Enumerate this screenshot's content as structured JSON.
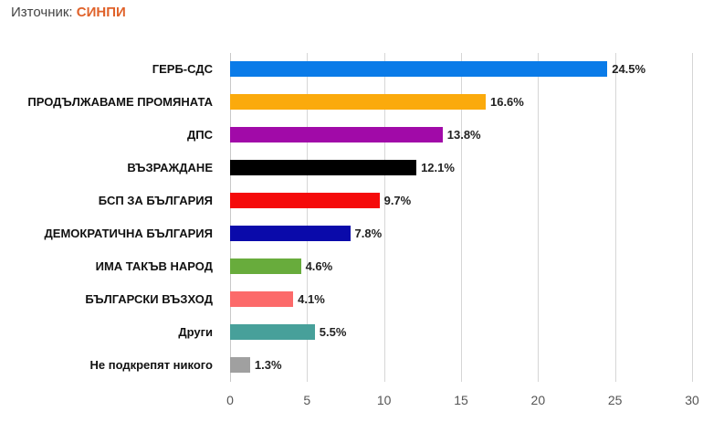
{
  "header": {
    "source_label": "Източник:",
    "source_name": "СИНПИ"
  },
  "colors": {
    "source_name": "#e0622a",
    "gridline": "#d6d6d6"
  },
  "chart_data": {
    "type": "bar",
    "orientation": "horizontal",
    "title": "",
    "xlabel": "",
    "ylabel": "",
    "xlim": [
      0,
      30
    ],
    "xticks": [
      0,
      5,
      10,
      15,
      20,
      25,
      30
    ],
    "grid": true,
    "legend": "none",
    "source": "Източник: СИНПИ",
    "categories": [
      "ГЕРБ-СДС",
      "ПРОДЪЛЖАВАМЕ ПРОМЯНАТА",
      "ДПС",
      "ВЪЗРАЖДАНЕ",
      "БСП ЗА БЪЛГАРИЯ",
      "ДЕМОКРАТИЧНА БЪЛГАРИЯ",
      "ИМА ТАКЪВ НАРОД",
      "БЪЛГАРСКИ ВЪЗХОД",
      "Други",
      "Не подкрепят никого"
    ],
    "values": [
      24.5,
      16.6,
      13.8,
      12.1,
      9.7,
      7.8,
      4.6,
      4.1,
      5.5,
      1.3
    ],
    "value_labels": [
      "24.5%",
      "16.6%",
      "13.8%",
      "12.1%",
      "9.7%",
      "7.8%",
      "4.6%",
      "4.1%",
      "5.5%",
      "1.3%"
    ],
    "bar_colors": [
      "#0a7be8",
      "#fbaa0c",
      "#a10aa8",
      "#000000",
      "#f50a0a",
      "#0a0aaa",
      "#68ac3c",
      "#fc6a6a",
      "#47a09a",
      "#a0a0a0"
    ]
  }
}
